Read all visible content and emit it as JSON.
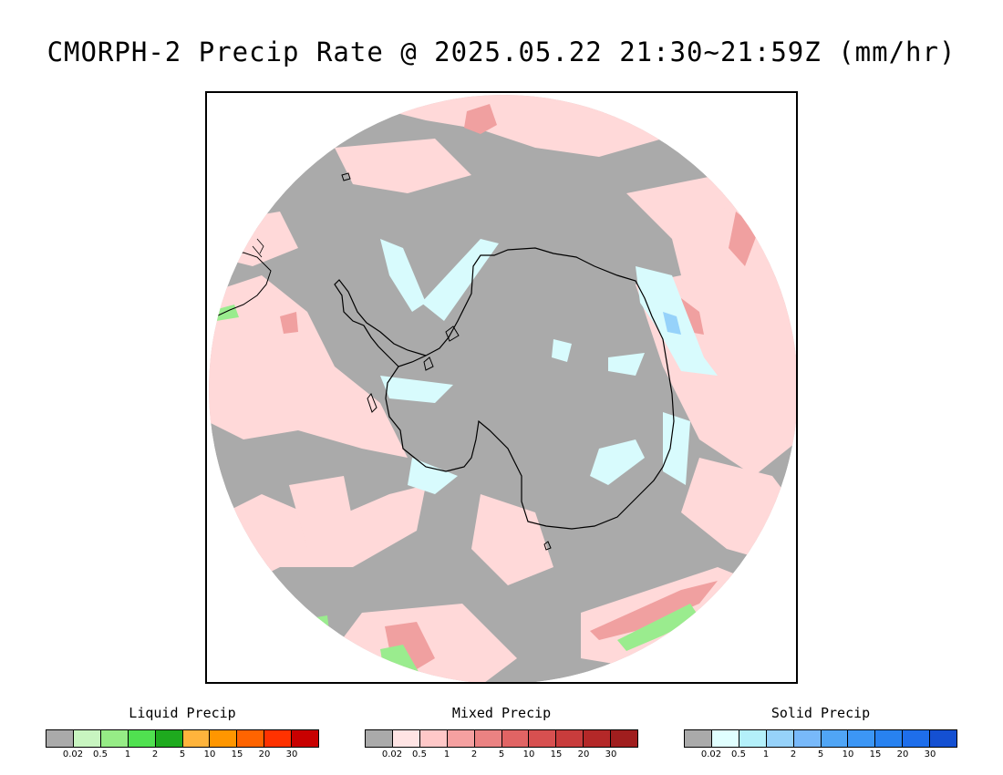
{
  "title": "CMORPH-2 Precip Rate @ 2025.05.22 21:30~21:59Z (mm/hr)",
  "map": {
    "projection": "south-polar-stereographic",
    "ocean_color": "#aaaaaa",
    "outside_color": "#ffffff",
    "coastline_color": "#000000"
  },
  "legends": [
    {
      "name": "liquid",
      "title": "Liquid Precip",
      "colors": [
        "#aaaaaa",
        "#c8f5c0",
        "#96ec86",
        "#50e150",
        "#1eaa1e",
        "#ffb43c",
        "#ff9600",
        "#ff6400",
        "#ff3200",
        "#c80000"
      ],
      "ticks": [
        "0.02",
        "0.5",
        "1",
        "2",
        "5",
        "10",
        "15",
        "20",
        "30"
      ]
    },
    {
      "name": "mixed",
      "title": "Mixed Precip",
      "colors": [
        "#aaaaaa",
        "#ffe4e4",
        "#ffc8c8",
        "#f5a0a0",
        "#eb8282",
        "#e16464",
        "#d75050",
        "#c83c3c",
        "#b42828",
        "#a01e1e"
      ],
      "ticks": [
        "0.02",
        "0.5",
        "1",
        "2",
        "5",
        "10",
        "15",
        "20",
        "30"
      ]
    },
    {
      "name": "solid",
      "title": "Solid Precip",
      "colors": [
        "#aaaaaa",
        "#e1ffff",
        "#b4f0fa",
        "#96d2fa",
        "#78b9fa",
        "#50a5f5",
        "#3c96f5",
        "#2882f0",
        "#1e6eeb",
        "#1450d2"
      ],
      "ticks": [
        "0.02",
        "0.5",
        "1",
        "2",
        "5",
        "10",
        "15",
        "20",
        "30"
      ]
    }
  ]
}
